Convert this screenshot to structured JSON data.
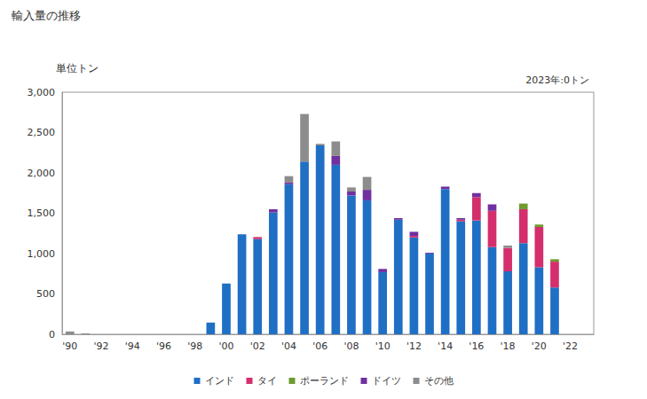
{
  "chart_data": {
    "type": "bar",
    "title": "輸入量の推移",
    "y_label": "単位トン",
    "annotation": "2023年:0トン",
    "stacked": true,
    "grid": false,
    "legend": "bottom",
    "categories": [
      "'90",
      null,
      "'92",
      null,
      "'94",
      null,
      "'96",
      null,
      "'98",
      null,
      "'00",
      null,
      "'02",
      null,
      "'04",
      null,
      "'06",
      null,
      "'08",
      null,
      "'10",
      null,
      "'12",
      null,
      "'14",
      null,
      "'16",
      null,
      "'18",
      null,
      "'20",
      null,
      "'22",
      null
    ],
    "ylim": [
      0,
      3000
    ],
    "yticks": [
      0,
      500,
      {
        "value": 1000,
        "label": "1,000"
      },
      {
        "value": 1500,
        "label": "1,500"
      },
      {
        "value": 2000,
        "label": "2,000"
      },
      {
        "value": 2500,
        "label": "2,500"
      },
      {
        "value": 3000,
        "label": "3,000"
      }
    ],
    "series": [
      {
        "name": "インド",
        "color": "#1f6fc4",
        "values": [
          0,
          0,
          0,
          0,
          0,
          0,
          0,
          0,
          0,
          145,
          630,
          1240,
          1180,
          1510,
          1860,
          2140,
          2340,
          2100,
          1720,
          1660,
          770,
          1420,
          1200,
          1000,
          1800,
          1400,
          1410,
          1080,
          780,
          1130,
          830,
          580,
          0,
          0
        ]
      },
      {
        "name": "タイ",
        "color": "#d42f6c",
        "values": [
          0,
          0,
          0,
          0,
          0,
          0,
          0,
          0,
          0,
          0,
          0,
          0,
          25,
          0,
          0,
          0,
          0,
          0,
          0,
          0,
          0,
          0,
          20,
          0,
          0,
          20,
          290,
          450,
          290,
          420,
          500,
          320,
          0,
          0
        ]
      },
      {
        "name": "ポーランド",
        "color": "#6f9a30",
        "values": [
          0,
          0,
          0,
          0,
          0,
          0,
          0,
          0,
          0,
          0,
          0,
          0,
          0,
          0,
          0,
          0,
          0,
          0,
          0,
          0,
          0,
          0,
          0,
          0,
          0,
          0,
          0,
          0,
          0,
          70,
          30,
          30,
          0,
          0
        ]
      },
      {
        "name": "ドイツ",
        "color": "#7030a0",
        "values": [
          0,
          0,
          0,
          0,
          0,
          0,
          0,
          0,
          0,
          0,
          0,
          0,
          0,
          40,
          20,
          0,
          0,
          110,
          50,
          130,
          40,
          20,
          50,
          10,
          30,
          20,
          50,
          80,
          0,
          0,
          0,
          0,
          0,
          0
        ]
      },
      {
        "name": "その他",
        "color": "#8c8c8c",
        "values": [
          35,
          10,
          0,
          0,
          0,
          0,
          0,
          0,
          0,
          0,
          0,
          0,
          0,
          0,
          80,
          590,
          20,
          180,
          50,
          160,
          0,
          0,
          0,
          0,
          0,
          0,
          0,
          0,
          30,
          0,
          0,
          0,
          0,
          0
        ]
      }
    ]
  }
}
